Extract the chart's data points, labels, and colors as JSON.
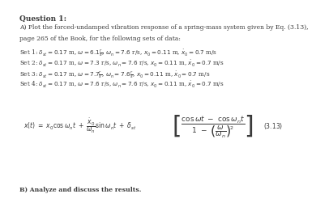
{
  "title": "Question 1:",
  "part_a": "A) Plot the forced-undamped vibration response of a spring-mass system given by Eq. (3.13),",
  "page_line": "page 265 of the Book, for the following sets of data:",
  "set1": "Set 1: $\\delta_{st} = 0.17$ m, $\\omega = 6.1\\frac{r}{s}$, $\\omega_n = 7.6$ r/s, $x_0 = 0.11$ m, $\\dot{x}_0 = 0.7$ m/s",
  "set2": "Set 2: $\\delta_{st} = 0.17$ m, $\\omega = 7.3$ r/s, $\\omega_n = 7.6$ r/s, $x_0 = 0.11$ m, $\\dot{x}_0 = 0.7$ m/s",
  "set3": "Set 3: $\\delta_{st} = 0.17$ m, $\\omega = 7.7\\frac{r}{s}$, $\\omega_n = 7.6\\frac{r}{s}$, $x_0 = 0.11$ m, $\\dot{x}_0 = 0.7$ m/s",
  "set4": "Set 4: $\\delta_{st} = 0.17$ m, $\\omega = 7.6$ r/s, $\\omega_n = 7.6$ r/s, $x_0 = 0.11$ m, $\\dot{x}_0 = 0.7$ m/s",
  "eq_left": "$x(t) \\ = \\ x_0 \\cos \\omega_n t \\ + \\ \\dfrac{\\dot{x}_0}{\\omega_n} \\sin \\omega_n t \\ + \\ \\delta_{st}$",
  "eq_bracket": "$\\left[ \\dfrac{\\cos \\omega t \\ - \\ \\cos \\omega_n t}{1 \\ - \\ \\left(\\dfrac{\\omega}{\\omega_n}\\right)^{2}} \\right]$",
  "eq_num": "(3.13)",
  "part_b": "B) Analyze and discuss the results.",
  "bg_color": "#ffffff",
  "text_color": "#3a3a3a",
  "title_fontsize": 6.5,
  "body_fontsize": 5.5,
  "set_fontsize": 5.2,
  "eq_fontsize": 5.5,
  "eq_num_fontsize": 5.5
}
